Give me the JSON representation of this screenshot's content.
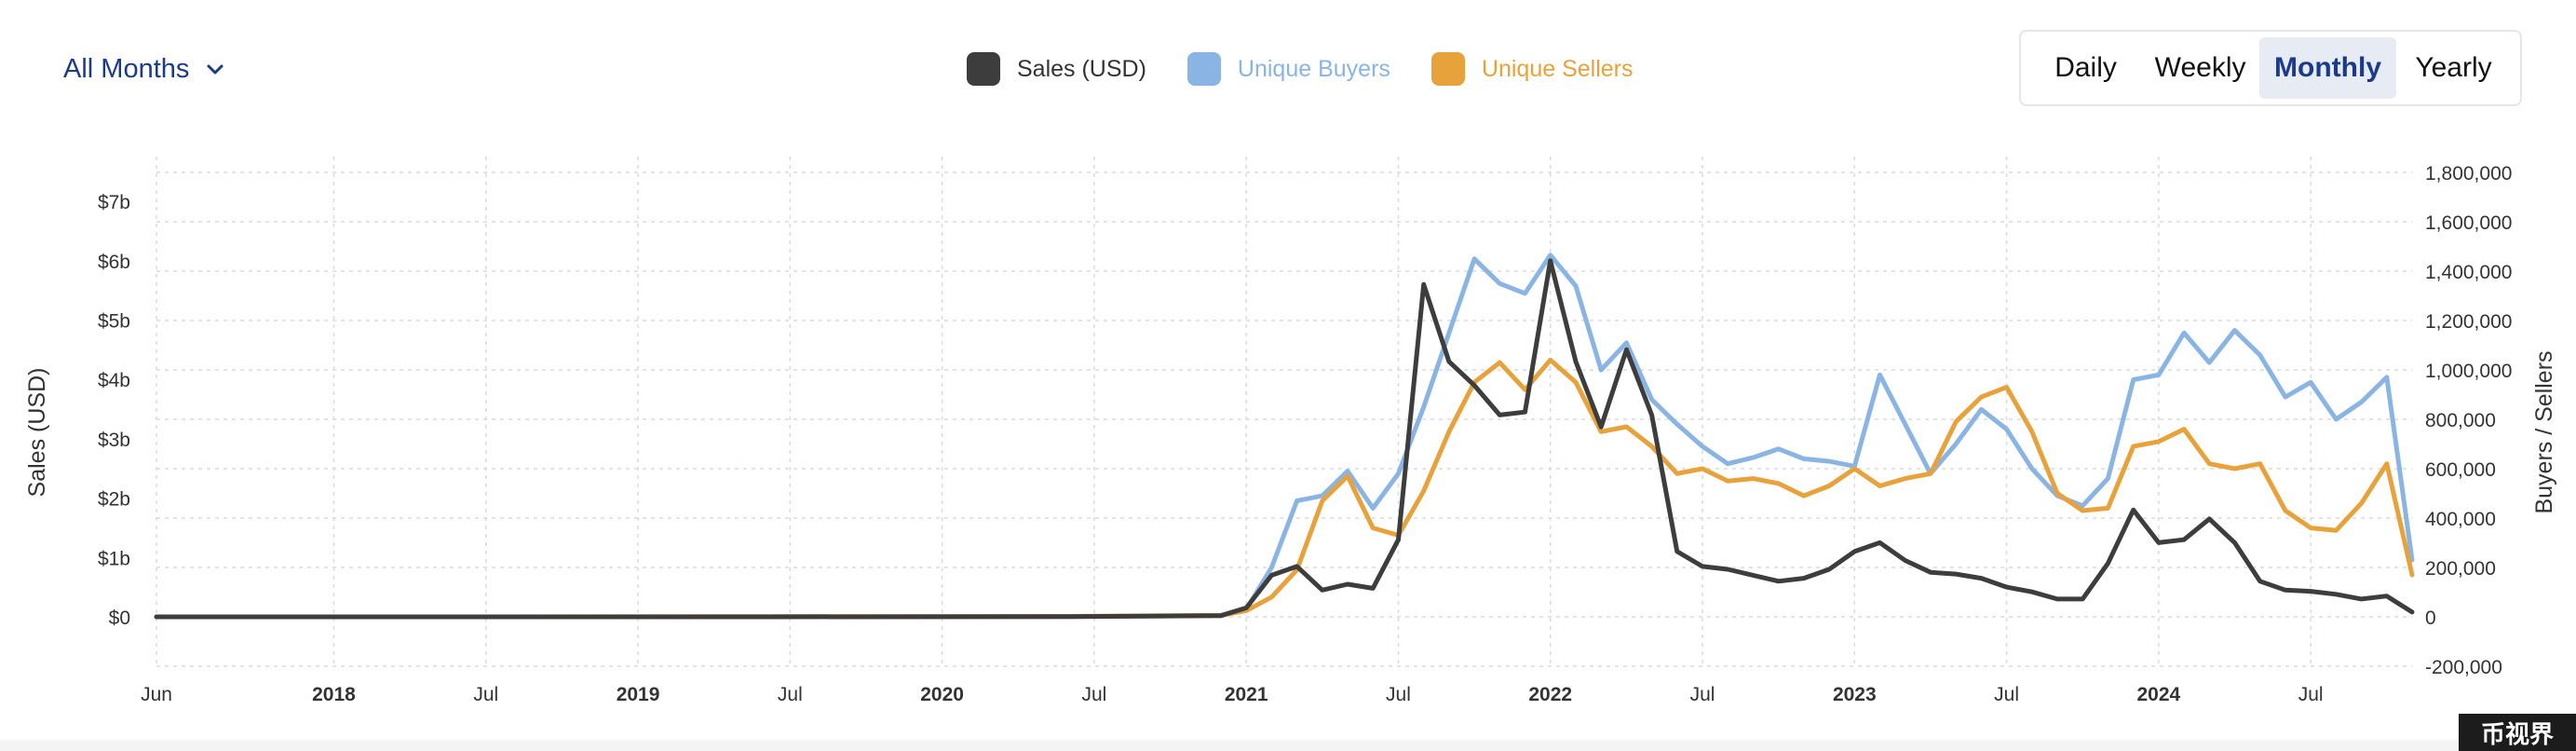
{
  "controls": {
    "period_label": "All Months",
    "granularity": [
      "Daily",
      "Weekly",
      "Monthly",
      "Yearly"
    ],
    "active_granularity": "Monthly"
  },
  "watermark": "币视界",
  "colors": {
    "sales": "#3d3d3d",
    "buyers": "#8ab4e3",
    "sellers": "#e8a23c",
    "active": "#1b3b8a"
  },
  "chart_data": {
    "type": "line",
    "ylabel": "Sales (USD)",
    "y2label": "Buyers / Sellers",
    "ylim": [
      -1.0,
      7.5
    ],
    "y2lim": [
      -200000,
      1800000
    ],
    "y_ticks": [
      0,
      1,
      2,
      3,
      4,
      5,
      6,
      7
    ],
    "y_tick_labels": [
      "$0",
      "$1b",
      "$2b",
      "$3b",
      "$4b",
      "$5b",
      "$6b",
      "$7b"
    ],
    "y2_ticks": [
      -200000,
      0,
      200000,
      400000,
      600000,
      800000,
      1000000,
      1200000,
      1400000,
      1600000,
      1800000
    ],
    "y2_tick_labels": [
      "-200,000",
      "0",
      "200,000",
      "400,000",
      "600,000",
      "800,000",
      "1,000,000",
      "1,200,000",
      "1,400,000",
      "1,600,000",
      "1,800,000"
    ],
    "x_ticks": [
      {
        "date": "2017-06",
        "label": "Jun",
        "bold": false
      },
      {
        "date": "2018-01",
        "label": "2018",
        "bold": true
      },
      {
        "date": "2018-07",
        "label": "Jul",
        "bold": false
      },
      {
        "date": "2019-01",
        "label": "2019",
        "bold": true
      },
      {
        "date": "2019-07",
        "label": "Jul",
        "bold": false
      },
      {
        "date": "2020-01",
        "label": "2020",
        "bold": true
      },
      {
        "date": "2020-07",
        "label": "Jul",
        "bold": false
      },
      {
        "date": "2021-01",
        "label": "2021",
        "bold": true
      },
      {
        "date": "2021-07",
        "label": "Jul",
        "bold": false
      },
      {
        "date": "2022-01",
        "label": "2022",
        "bold": true
      },
      {
        "date": "2022-07",
        "label": "Jul",
        "bold": false
      },
      {
        "date": "2023-01",
        "label": "2023",
        "bold": true
      },
      {
        "date": "2023-07",
        "label": "Jul",
        "bold": false
      },
      {
        "date": "2024-01",
        "label": "2024",
        "bold": true
      },
      {
        "date": "2024-07",
        "label": "Jul",
        "bold": false
      }
    ],
    "x_start": "2017-06",
    "x_end": "2024-11",
    "grid": true,
    "legend_position": "top-center",
    "series": [
      {
        "name": "Sales (USD)",
        "axis": "left",
        "color": "#3d3d3d",
        "points": [
          [
            "2017-06",
            0.0
          ],
          [
            "2018-06",
            0.0
          ],
          [
            "2019-06",
            0.0
          ],
          [
            "2020-06",
            0.005
          ],
          [
            "2020-12",
            0.02
          ],
          [
            "2021-01",
            0.15
          ],
          [
            "2021-02",
            0.7
          ],
          [
            "2021-03",
            0.85
          ],
          [
            "2021-04",
            0.45
          ],
          [
            "2021-05",
            0.55
          ],
          [
            "2021-06",
            0.48
          ],
          [
            "2021-07",
            1.3
          ],
          [
            "2021-08",
            5.6
          ],
          [
            "2021-09",
            4.3
          ],
          [
            "2021-10",
            3.9
          ],
          [
            "2021-11",
            3.4
          ],
          [
            "2021-12",
            3.45
          ],
          [
            "2022-01",
            6.0
          ],
          [
            "2022-02",
            4.3
          ],
          [
            "2022-03",
            3.2
          ],
          [
            "2022-04",
            4.5
          ],
          [
            "2022-05",
            3.4
          ],
          [
            "2022-06",
            1.1
          ],
          [
            "2022-07",
            0.85
          ],
          [
            "2022-08",
            0.8
          ],
          [
            "2022-09",
            0.7
          ],
          [
            "2022-10",
            0.6
          ],
          [
            "2022-11",
            0.65
          ],
          [
            "2022-12",
            0.8
          ],
          [
            "2023-01",
            1.1
          ],
          [
            "2023-02",
            1.25
          ],
          [
            "2023-03",
            0.95
          ],
          [
            "2023-04",
            0.75
          ],
          [
            "2023-05",
            0.72
          ],
          [
            "2023-06",
            0.65
          ],
          [
            "2023-07",
            0.5
          ],
          [
            "2023-08",
            0.42
          ],
          [
            "2023-09",
            0.3
          ],
          [
            "2023-10",
            0.3
          ],
          [
            "2023-11",
            0.9
          ],
          [
            "2023-12",
            1.8
          ],
          [
            "2024-01",
            1.25
          ],
          [
            "2024-02",
            1.3
          ],
          [
            "2024-03",
            1.65
          ],
          [
            "2024-04",
            1.25
          ],
          [
            "2024-05",
            0.6
          ],
          [
            "2024-06",
            0.45
          ],
          [
            "2024-07",
            0.43
          ],
          [
            "2024-08",
            0.38
          ],
          [
            "2024-09",
            0.3
          ],
          [
            "2024-10",
            0.35
          ],
          [
            "2024-11",
            0.08
          ]
        ]
      },
      {
        "name": "Unique Buyers",
        "axis": "right",
        "color": "#8ab4e3",
        "points": [
          [
            "2017-06",
            0
          ],
          [
            "2018-06",
            0
          ],
          [
            "2019-06",
            0
          ],
          [
            "2020-06",
            1000
          ],
          [
            "2020-12",
            5000
          ],
          [
            "2021-01",
            30000
          ],
          [
            "2021-02",
            200000
          ],
          [
            "2021-03",
            470000
          ],
          [
            "2021-04",
            490000
          ],
          [
            "2021-05",
            590000
          ],
          [
            "2021-06",
            440000
          ],
          [
            "2021-07",
            580000
          ],
          [
            "2021-08",
            850000
          ],
          [
            "2021-09",
            1150000
          ],
          [
            "2021-10",
            1450000
          ],
          [
            "2021-11",
            1350000
          ],
          [
            "2021-12",
            1310000
          ],
          [
            "2022-01",
            1465000
          ],
          [
            "2022-02",
            1340000
          ],
          [
            "2022-03",
            1000000
          ],
          [
            "2022-04",
            1110000
          ],
          [
            "2022-05",
            880000
          ],
          [
            "2022-06",
            780000
          ],
          [
            "2022-07",
            690000
          ],
          [
            "2022-08",
            620000
          ],
          [
            "2022-09",
            645000
          ],
          [
            "2022-10",
            680000
          ],
          [
            "2022-11",
            640000
          ],
          [
            "2022-12",
            630000
          ],
          [
            "2023-01",
            610000
          ],
          [
            "2023-02",
            980000
          ],
          [
            "2023-03",
            780000
          ],
          [
            "2023-04",
            580000
          ],
          [
            "2023-05",
            700000
          ],
          [
            "2023-06",
            840000
          ],
          [
            "2023-07",
            760000
          ],
          [
            "2023-08",
            600000
          ],
          [
            "2023-09",
            490000
          ],
          [
            "2023-10",
            450000
          ],
          [
            "2023-11",
            560000
          ],
          [
            "2023-12",
            960000
          ],
          [
            "2024-01",
            980000
          ],
          [
            "2024-02",
            1150000
          ],
          [
            "2024-03",
            1030000
          ],
          [
            "2024-04",
            1160000
          ],
          [
            "2024-05",
            1060000
          ],
          [
            "2024-06",
            890000
          ],
          [
            "2024-07",
            950000
          ],
          [
            "2024-08",
            800000
          ],
          [
            "2024-09",
            870000
          ],
          [
            "2024-10",
            970000
          ],
          [
            "2024-11",
            230000
          ]
        ]
      },
      {
        "name": "Unique Sellers",
        "axis": "right",
        "color": "#e8a23c",
        "points": [
          [
            "2017-06",
            0
          ],
          [
            "2018-06",
            0
          ],
          [
            "2019-06",
            1000
          ],
          [
            "2020-06",
            2000
          ],
          [
            "2020-12",
            6000
          ],
          [
            "2021-01",
            25000
          ],
          [
            "2021-02",
            80000
          ],
          [
            "2021-03",
            190000
          ],
          [
            "2021-04",
            470000
          ],
          [
            "2021-05",
            570000
          ],
          [
            "2021-06",
            360000
          ],
          [
            "2021-07",
            330000
          ],
          [
            "2021-08",
            510000
          ],
          [
            "2021-09",
            750000
          ],
          [
            "2021-10",
            950000
          ],
          [
            "2021-11",
            1030000
          ],
          [
            "2021-12",
            920000
          ],
          [
            "2022-01",
            1040000
          ],
          [
            "2022-02",
            950000
          ],
          [
            "2022-03",
            750000
          ],
          [
            "2022-04",
            770000
          ],
          [
            "2022-05",
            690000
          ],
          [
            "2022-06",
            580000
          ],
          [
            "2022-07",
            600000
          ],
          [
            "2022-08",
            550000
          ],
          [
            "2022-09",
            560000
          ],
          [
            "2022-10",
            540000
          ],
          [
            "2022-11",
            490000
          ],
          [
            "2022-12",
            530000
          ],
          [
            "2023-01",
            600000
          ],
          [
            "2023-02",
            530000
          ],
          [
            "2023-03",
            560000
          ],
          [
            "2023-04",
            580000
          ],
          [
            "2023-05",
            790000
          ],
          [
            "2023-06",
            890000
          ],
          [
            "2023-07",
            930000
          ],
          [
            "2023-08",
            750000
          ],
          [
            "2023-09",
            500000
          ],
          [
            "2023-10",
            430000
          ],
          [
            "2023-11",
            440000
          ],
          [
            "2023-12",
            690000
          ],
          [
            "2024-01",
            710000
          ],
          [
            "2024-02",
            760000
          ],
          [
            "2024-03",
            620000
          ],
          [
            "2024-04",
            600000
          ],
          [
            "2024-05",
            620000
          ],
          [
            "2024-06",
            430000
          ],
          [
            "2024-07",
            360000
          ],
          [
            "2024-08",
            350000
          ],
          [
            "2024-09",
            460000
          ],
          [
            "2024-10",
            620000
          ],
          [
            "2024-11",
            170000
          ]
        ]
      }
    ]
  }
}
